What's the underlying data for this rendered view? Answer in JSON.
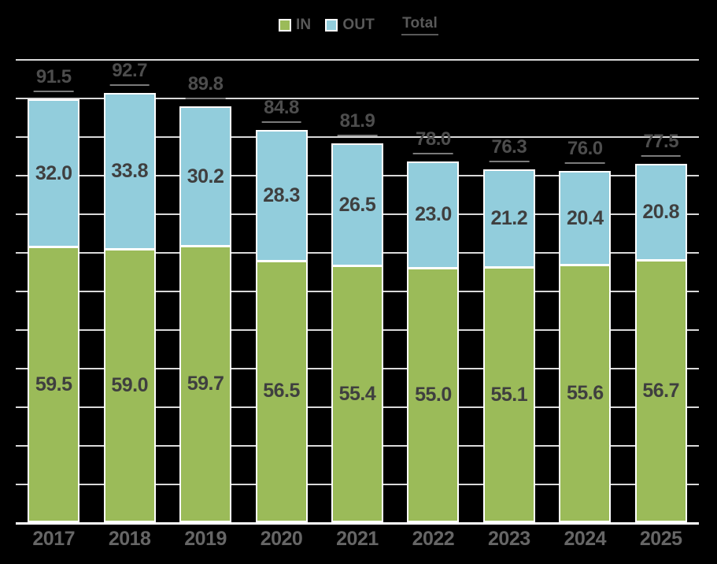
{
  "chart_data": {
    "type": "bar",
    "stacked": true,
    "title": "",
    "categories": [
      "2017",
      "2018",
      "2019",
      "2020",
      "2021",
      "2022",
      "2023",
      "2024",
      "2025"
    ],
    "series": [
      {
        "name": "IN",
        "color": "#9bbb59",
        "values": [
          59.5,
          59.0,
          59.7,
          56.5,
          55.4,
          55.0,
          55.1,
          55.6,
          56.7
        ]
      },
      {
        "name": "OUT",
        "color": "#92cddc",
        "values": [
          32.0,
          33.8,
          30.2,
          28.3,
          26.5,
          23.0,
          21.2,
          20.4,
          20.8
        ]
      }
    ],
    "totals": [
      91.5,
      92.7,
      89.8,
      84.8,
      81.9,
      78.0,
      76.3,
      76.0,
      77.5
    ],
    "total_label": "Total",
    "value_decimals": 1,
    "xlabel": "",
    "ylabel": "",
    "ylim": [
      0,
      100
    ],
    "gridline_intervals": 12,
    "grid": true,
    "legend_position": "top-center",
    "legend": [
      "IN",
      "OUT",
      "Total"
    ]
  },
  "colors": {
    "background": "#000000",
    "bar_border": "#ffffff",
    "gridline": "#d9d9d9",
    "axis_line": "#ffffff",
    "segment_label": "#3f3f3f",
    "total_label": "#4d4d4d",
    "total_underline": "#7a7a7a",
    "axis_label": "#666666",
    "legend_text": "#595959"
  }
}
